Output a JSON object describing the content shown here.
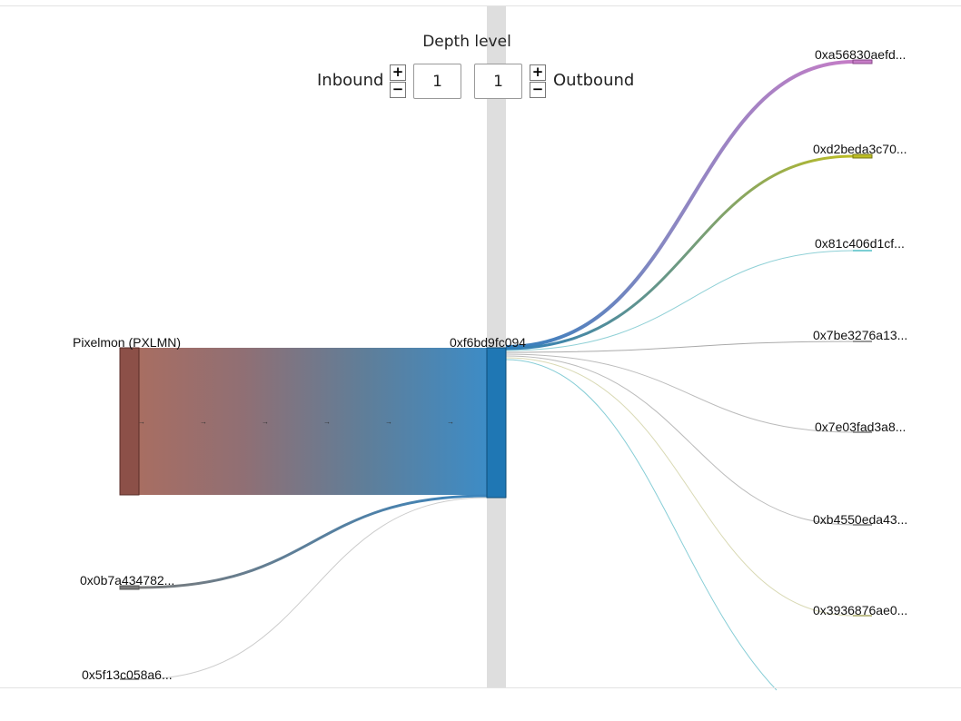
{
  "depth": {
    "title": "Depth level",
    "inbound_label": "Inbound",
    "outbound_label": "Outbound",
    "inbound_value": "1",
    "outbound_value": "1",
    "increment_symbol": "+",
    "decrement_symbol": "−"
  },
  "colors": {
    "token_node": "#8c5048",
    "center_node": "#1f77b4",
    "outbound_1": "#c57cc6",
    "outbound_2": "#bcbd22",
    "outbound_3": "#7ccfd4",
    "band": "#dedede"
  },
  "graph": {
    "token": {
      "label": "Pixelmon (PXLMN)"
    },
    "center": {
      "label": "0xf6bd9fc094"
    },
    "inbound": [
      {
        "label": "0x0b7a434782..."
      },
      {
        "label": "0x5f13c058a6..."
      }
    ],
    "outbound": [
      {
        "label": "0xa56830aefd..."
      },
      {
        "label": "0xd2beda3c70..."
      },
      {
        "label": "0x81c406d1cf..."
      },
      {
        "label": "0x7be3276a13..."
      },
      {
        "label": "0x7e03fad3a8..."
      },
      {
        "label": "0xb4550eda43..."
      },
      {
        "label": "0x3936876ae0..."
      }
    ]
  }
}
